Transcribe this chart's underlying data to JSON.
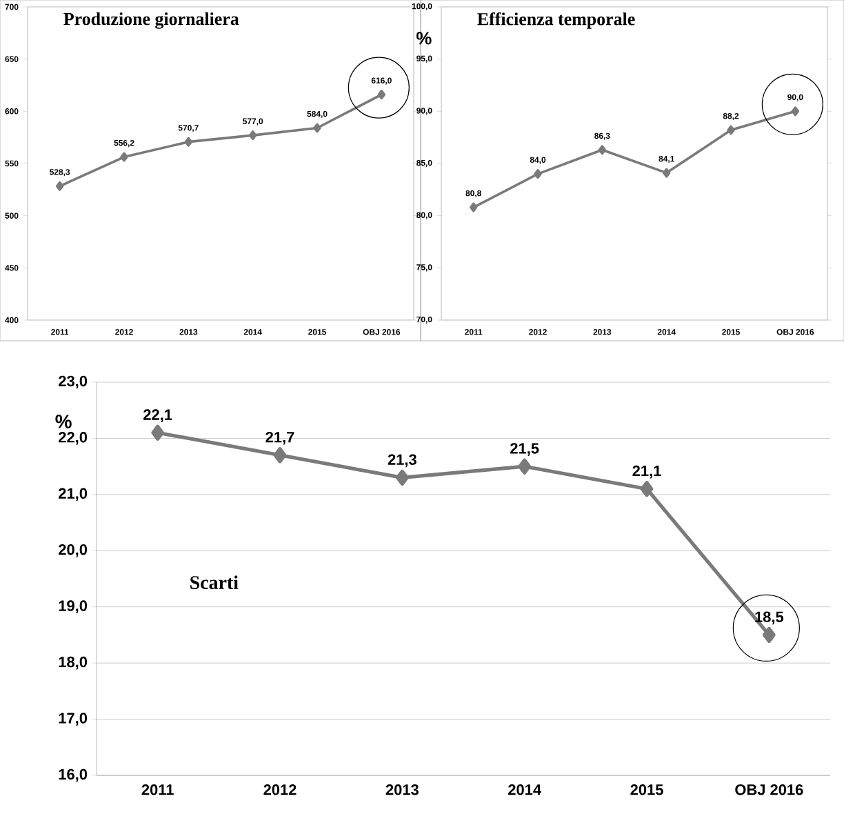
{
  "chart_data": [
    {
      "type": "line",
      "title": "Produzione giornaliera",
      "categories": [
        "2011",
        "2012",
        "2013",
        "2014",
        "2015",
        "OBJ 2016"
      ],
      "series": [
        {
          "color": "#7a7a7a",
          "values": [
            528.3,
            556.2,
            570.7,
            577.0,
            584.0,
            616.0
          ],
          "value_labels": [
            "528,3",
            "556,2",
            "570,7",
            "577,0",
            "584,0",
            "616,0"
          ]
        }
      ],
      "ylim": [
        400,
        700
      ],
      "yticks": [
        400,
        450,
        500,
        550,
        600,
        650,
        700
      ],
      "marker": "diamond",
      "line_style": "solid"
    },
    {
      "type": "line",
      "title": "Efficienza temporale",
      "ylabel": "%",
      "categories": [
        "2011",
        "2012",
        "2013",
        "2014",
        "2015",
        "OBJ 2016"
      ],
      "series": [
        {
          "color": "#7a7a7a",
          "values": [
            80.8,
            84.0,
            86.3,
            84.1,
            88.2,
            90.0
          ],
          "value_labels": [
            "80,8",
            "84,0",
            "86,3",
            "84,1",
            "88,2",
            "90,0"
          ]
        }
      ],
      "ylim": [
        70,
        100
      ],
      "yticks": [
        {
          "value": 70,
          "label": "70,0"
        },
        {
          "value": 75,
          "label": "75,0"
        },
        {
          "value": 80,
          "label": "80,0"
        },
        {
          "value": 85,
          "label": "85,0"
        },
        {
          "value": 90,
          "label": "90,0"
        },
        {
          "value": 95,
          "label": "95,0"
        },
        {
          "value": 100,
          "label": "100,0"
        }
      ],
      "marker": "diamond",
      "line_style": "solid"
    },
    {
      "type": "line",
      "title": "Scarti",
      "ylabel": "%",
      "categories": [
        "2011",
        "2012",
        "2013",
        "2014",
        "2015",
        "OBJ 2016"
      ],
      "series": [
        {
          "color": "#7a7a7a",
          "values": [
            22.1,
            21.7,
            21.3,
            21.5,
            21.1,
            18.5
          ],
          "value_labels": [
            "22,1",
            "21,7",
            "21,3",
            "21,5",
            "21,1",
            "18,5"
          ]
        }
      ],
      "ylim": [
        16,
        23
      ],
      "yticks": [
        {
          "value": 16,
          "label": "16,0"
        },
        {
          "value": 17,
          "label": "17,0"
        },
        {
          "value": 18,
          "label": "18,0"
        },
        {
          "value": 19,
          "label": "19,0"
        },
        {
          "value": 20,
          "label": "20,0"
        },
        {
          "value": 21,
          "label": "21,0"
        },
        {
          "value": 22,
          "label": "22,0"
        },
        {
          "value": 23,
          "label": "23,0"
        }
      ],
      "grid": "y",
      "marker": "diamond",
      "line_style": "solid"
    }
  ]
}
